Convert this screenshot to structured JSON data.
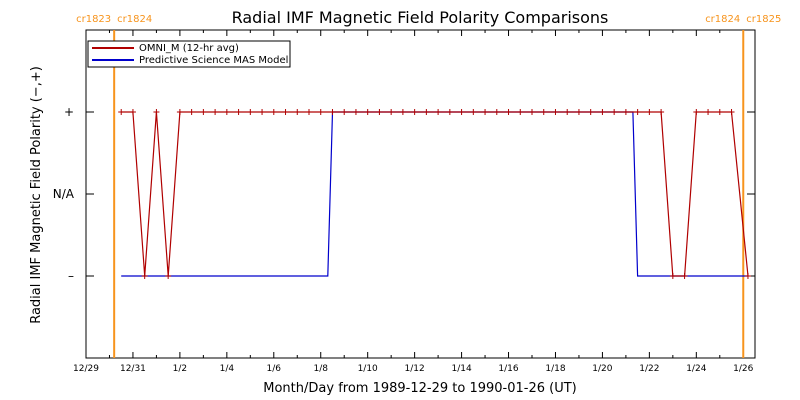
{
  "chart_data": {
    "type": "line",
    "title": "Radial IMF Magnetic Field Polarity Comparisons",
    "xlabel": "Month/Day from 1989-12-29 to 1990-01-26 (UT)",
    "ylabel": "Radial IMF Magnetic Field Polarity (−,+)",
    "x_ticks": [
      "12/29",
      "12/31",
      "1/2",
      "1/4",
      "1/6",
      "1/8",
      "1/10",
      "1/12",
      "1/14",
      "1/16",
      "1/18",
      "1/20",
      "1/22",
      "1/24",
      "1/26"
    ],
    "y_ticks": [
      {
        "label": "+",
        "value": 1
      },
      {
        "label": "N/A",
        "value": 0
      },
      {
        "label": "–",
        "value": -1
      }
    ],
    "xlim": [
      0,
      28.5
    ],
    "ylim": [
      -2,
      2
    ],
    "vertical_markers": [
      {
        "day": 1.2,
        "label_left": "cr1823",
        "label_right": "cr1824",
        "color": "#f7941d"
      },
      {
        "day": 28.0,
        "label_left": "cr1824",
        "label_right": "cr1825",
        "color": "#f7941d"
      }
    ],
    "series": [
      {
        "name": "OMNI_M (12-hr avg)",
        "color": "#b00000",
        "marker": "+",
        "points": [
          [
            1.5,
            1
          ],
          [
            2.0,
            1
          ],
          [
            2.5,
            -1
          ],
          [
            3.0,
            1
          ],
          [
            3.5,
            -1
          ],
          [
            4.0,
            1
          ],
          [
            4.5,
            1
          ],
          [
            5.0,
            1
          ],
          [
            5.5,
            1
          ],
          [
            6.0,
            1
          ],
          [
            6.5,
            1
          ],
          [
            7.0,
            1
          ],
          [
            7.5,
            1
          ],
          [
            8.0,
            1
          ],
          [
            8.5,
            1
          ],
          [
            9.0,
            1
          ],
          [
            9.5,
            1
          ],
          [
            10.0,
            1
          ],
          [
            10.5,
            1
          ],
          [
            11.0,
            1
          ],
          [
            11.5,
            1
          ],
          [
            12.0,
            1
          ],
          [
            12.5,
            1
          ],
          [
            13.0,
            1
          ],
          [
            13.5,
            1
          ],
          [
            14.0,
            1
          ],
          [
            14.5,
            1
          ],
          [
            15.0,
            1
          ],
          [
            15.5,
            1
          ],
          [
            16.0,
            1
          ],
          [
            16.5,
            1
          ],
          [
            17.0,
            1
          ],
          [
            17.5,
            1
          ],
          [
            18.0,
            1
          ],
          [
            18.5,
            1
          ],
          [
            19.0,
            1
          ],
          [
            19.5,
            1
          ],
          [
            20.0,
            1
          ],
          [
            20.5,
            1
          ],
          [
            21.0,
            1
          ],
          [
            21.5,
            1
          ],
          [
            22.0,
            1
          ],
          [
            22.5,
            1
          ],
          [
            23.0,
            1
          ],
          [
            23.5,
            1
          ],
          [
            24.0,
            1
          ],
          [
            24.5,
            1
          ],
          [
            25.0,
            -1
          ],
          [
            25.5,
            -1
          ],
          [
            26.0,
            1
          ],
          [
            26.5,
            1
          ],
          [
            27.0,
            1
          ],
          [
            27.5,
            1
          ],
          [
            28.2,
            -1
          ]
        ]
      },
      {
        "name": "Predictive Science MAS Model",
        "color": "#0000cc",
        "marker": "",
        "points": [
          [
            1.5,
            -1
          ],
          [
            10.3,
            -1
          ],
          [
            10.5,
            1
          ],
          [
            23.3,
            1
          ],
          [
            23.5,
            -1
          ],
          [
            28.2,
            -1
          ]
        ]
      }
    ],
    "grid": false,
    "legend_position": "top-left"
  }
}
